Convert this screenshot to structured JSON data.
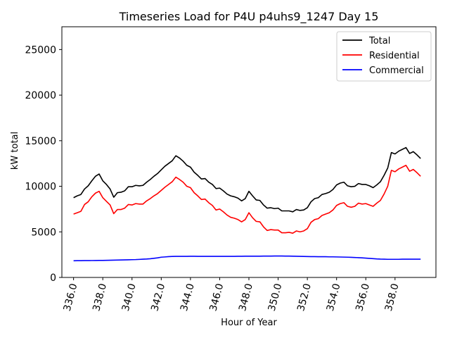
{
  "chart_data": {
    "type": "line",
    "title": "Timeseries Load for P4U p4uhs9_1247  Day 15",
    "xlabel": "Hour of Year",
    "ylabel": "kW total",
    "xlim": [
      335.2,
      360.8
    ],
    "ylim": [
      0,
      27500
    ],
    "x_ticks": [
      336,
      338,
      340,
      342,
      344,
      346,
      348,
      350,
      352,
      354,
      356,
      358
    ],
    "x_tick_labels": [
      "336.0",
      "338.0",
      "340.0",
      "342.0",
      "344.0",
      "346.0",
      "348.0",
      "350.0",
      "352.0",
      "354.0",
      "356.0",
      "358.0"
    ],
    "y_ticks": [
      0,
      5000,
      10000,
      15000,
      20000,
      25000
    ],
    "y_tick_labels": [
      "0",
      "5000",
      "10000",
      "15000",
      "20000",
      "25000"
    ],
    "legend_position": "top-right",
    "x": [
      336.0,
      336.25,
      336.5,
      336.75,
      337.0,
      337.25,
      337.5,
      337.75,
      338.0,
      338.25,
      338.5,
      338.75,
      339.0,
      339.25,
      339.5,
      339.75,
      340.0,
      340.25,
      340.5,
      340.75,
      341.0,
      341.25,
      341.5,
      341.75,
      342.0,
      342.25,
      342.5,
      342.75,
      343.0,
      343.25,
      343.5,
      343.75,
      344.0,
      344.25,
      344.5,
      344.75,
      345.0,
      345.25,
      345.5,
      345.75,
      346.0,
      346.25,
      346.5,
      346.75,
      347.0,
      347.25,
      347.5,
      347.75,
      348.0,
      348.25,
      348.5,
      348.75,
      349.0,
      349.25,
      349.5,
      349.75,
      350.0,
      350.25,
      350.5,
      350.75,
      351.0,
      351.25,
      351.5,
      351.75,
      352.0,
      352.25,
      352.5,
      352.75,
      353.0,
      353.25,
      353.5,
      353.75,
      354.0,
      354.25,
      354.5,
      354.75,
      355.0,
      355.25,
      355.5,
      355.75,
      356.0,
      356.25,
      356.5,
      356.75,
      357.0,
      357.25,
      357.5,
      357.75,
      358.0,
      358.25,
      358.5,
      358.75,
      359.0,
      359.25,
      359.5,
      359.75
    ],
    "series": [
      {
        "name": "Total",
        "color": "#000000",
        "values": [
          8750,
          8950,
          9100,
          9700,
          10050,
          10600,
          11100,
          11350,
          10600,
          10200,
          9700,
          8800,
          9300,
          9350,
          9500,
          9950,
          9950,
          10100,
          10050,
          10100,
          10450,
          10750,
          11100,
          11400,
          11800,
          12200,
          12500,
          12800,
          13350,
          13100,
          12750,
          12300,
          12100,
          11550,
          11200,
          10800,
          10850,
          10450,
          10200,
          9750,
          9800,
          9500,
          9150,
          8950,
          8850,
          8700,
          8400,
          8650,
          9450,
          8950,
          8500,
          8450,
          7950,
          7600,
          7650,
          7550,
          7600,
          7300,
          7300,
          7300,
          7200,
          7450,
          7350,
          7400,
          7650,
          8300,
          8650,
          8750,
          9100,
          9200,
          9350,
          9650,
          10150,
          10350,
          10450,
          10050,
          9950,
          10000,
          10300,
          10200,
          10200,
          10050,
          9850,
          10150,
          10500,
          11200,
          12000,
          13700,
          13550,
          13850,
          14050,
          14250,
          13600,
          13800,
          13450,
          13050
        ]
      },
      {
        "name": "Residential",
        "color": "#ff0000",
        "values": [
          6950,
          7100,
          7250,
          8000,
          8300,
          8850,
          9250,
          9450,
          8750,
          8350,
          7950,
          7000,
          7450,
          7450,
          7600,
          8000,
          7950,
          8100,
          8050,
          8050,
          8400,
          8650,
          8950,
          9200,
          9550,
          9900,
          10200,
          10500,
          11000,
          10750,
          10450,
          10000,
          9850,
          9300,
          8950,
          8550,
          8600,
          8200,
          7900,
          7400,
          7500,
          7200,
          6850,
          6600,
          6500,
          6350,
          6100,
          6350,
          7100,
          6550,
          6150,
          6100,
          5550,
          5150,
          5250,
          5200,
          5200,
          4900,
          4900,
          4950,
          4850,
          5100,
          5000,
          5100,
          5350,
          6050,
          6350,
          6450,
          6800,
          6950,
          7100,
          7400,
          7900,
          8100,
          8200,
          7800,
          7700,
          7800,
          8150,
          8050,
          8100,
          7950,
          7800,
          8150,
          8450,
          9150,
          10000,
          11750,
          11600,
          11900,
          12100,
          12300,
          11650,
          11850,
          11500,
          11100
        ]
      },
      {
        "name": "Commercial",
        "color": "#0000ff",
        "values": [
          1830,
          1840,
          1840,
          1850,
          1850,
          1855,
          1860,
          1865,
          1870,
          1880,
          1890,
          1900,
          1910,
          1920,
          1930,
          1940,
          1950,
          1960,
          1980,
          2000,
          2020,
          2050,
          2100,
          2150,
          2220,
          2250,
          2280,
          2300,
          2310,
          2310,
          2310,
          2310,
          2320,
          2320,
          2310,
          2310,
          2310,
          2310,
          2310,
          2310,
          2310,
          2310,
          2310,
          2310,
          2310,
          2320,
          2320,
          2330,
          2330,
          2330,
          2330,
          2330,
          2340,
          2340,
          2340,
          2350,
          2350,
          2350,
          2340,
          2340,
          2330,
          2320,
          2310,
          2300,
          2290,
          2280,
          2280,
          2270,
          2270,
          2270,
          2260,
          2260,
          2250,
          2240,
          2230,
          2220,
          2210,
          2190,
          2170,
          2150,
          2120,
          2090,
          2060,
          2030,
          2010,
          2000,
          1990,
          1990,
          1990,
          1990,
          2000,
          2000,
          2000,
          2000,
          2000,
          2000
        ]
      }
    ]
  }
}
